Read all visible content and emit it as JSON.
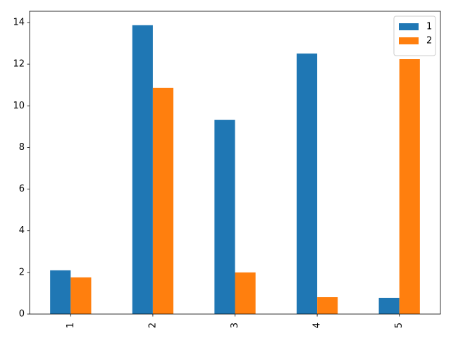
{
  "chart_data": {
    "type": "bar",
    "categories": [
      "1",
      "2",
      "3",
      "4",
      "5"
    ],
    "series": [
      {
        "name": "1",
        "color": "#1f77b4",
        "values": [
          2.1,
          13.87,
          9.33,
          12.51,
          0.78
        ]
      },
      {
        "name": "2",
        "color": "#ff7f0e",
        "values": [
          1.76,
          10.86,
          2.0,
          0.81,
          12.24
        ]
      }
    ],
    "ylim": [
      0,
      14.54
    ],
    "yticks": [
      0,
      2,
      4,
      6,
      8,
      10,
      12,
      14
    ],
    "legend": "upper right"
  }
}
